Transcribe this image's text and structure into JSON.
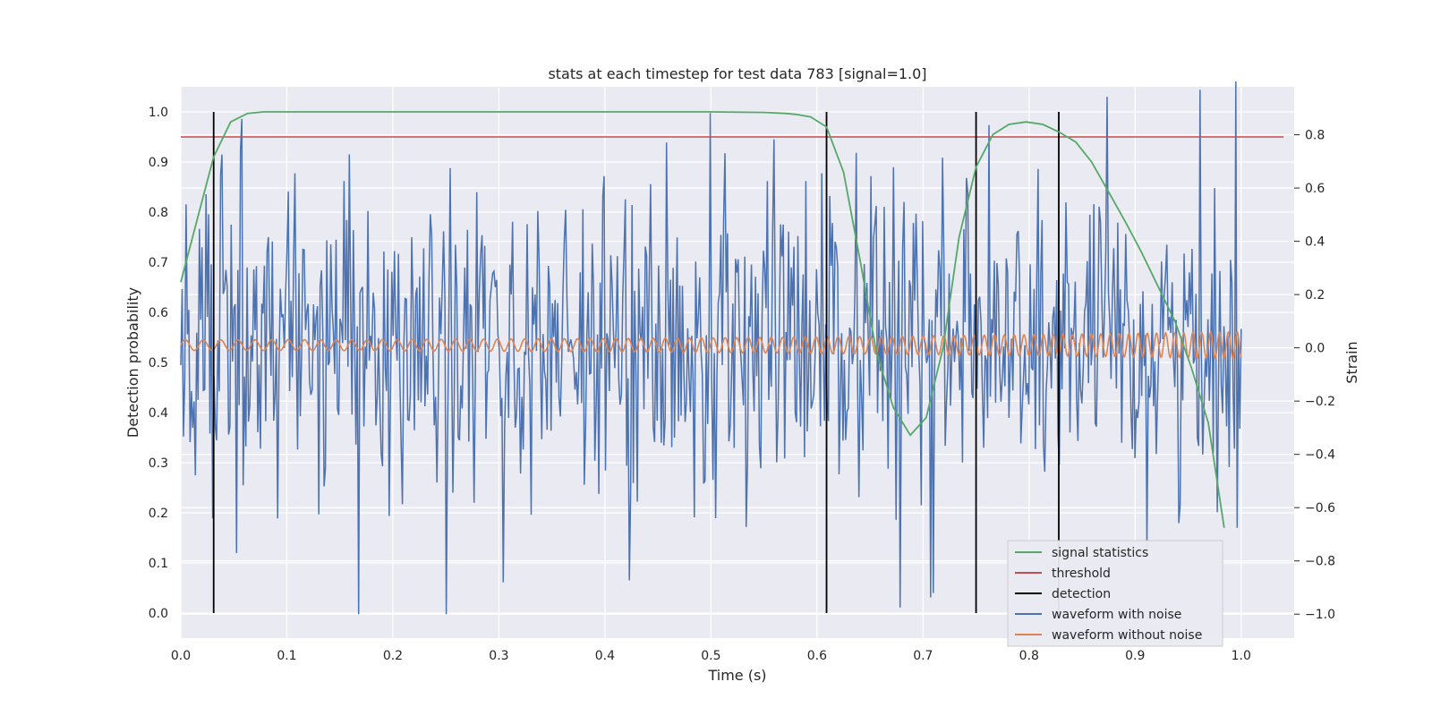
{
  "chart_data": {
    "type": "line",
    "title": "stats at each timestep for test data 783 [signal=1.0]",
    "xlabel": "Time (s)",
    "ylabel_left": "Detection probability",
    "ylabel_right": "Strain",
    "xlim": [
      0.0,
      1.05
    ],
    "ylim_left": [
      -0.05,
      1.05
    ],
    "ylim_right": [
      -1.09,
      0.98
    ],
    "x_ticks": [
      0.0,
      0.1,
      0.2,
      0.3,
      0.4,
      0.5,
      0.6,
      0.7,
      0.8,
      0.9,
      1.0
    ],
    "x_tick_labels": [
      "0.0",
      "0.1",
      "0.2",
      "0.3",
      "0.4",
      "0.5",
      "0.6",
      "0.7",
      "0.8",
      "0.9",
      "1.0"
    ],
    "y_left_ticks": [
      0.0,
      0.1,
      0.2,
      0.3,
      0.4,
      0.5,
      0.6,
      0.7,
      0.8,
      0.9,
      1.0
    ],
    "y_left_tick_labels": [
      "0.0",
      "0.1",
      "0.2",
      "0.3",
      "0.4",
      "0.5",
      "0.6",
      "0.7",
      "0.8",
      "0.9",
      "1.0"
    ],
    "y_right_ticks": [
      -1.0,
      -0.8,
      -0.6,
      -0.4,
      -0.2,
      0.0,
      0.2,
      0.4,
      0.6,
      0.8
    ],
    "y_right_tick_labels": [
      "−1.0",
      "−0.8",
      "−0.6",
      "−0.4",
      "−0.2",
      "0.0",
      "0.2",
      "0.4",
      "0.6",
      "0.8"
    ],
    "grid": true,
    "legend_position": "lower-right",
    "series": [
      {
        "name": "signal statistics",
        "axis": "left",
        "color": "#55a868",
        "x": [
          0.0,
          0.016,
          0.031,
          0.047,
          0.063,
          0.078,
          0.094,
          0.2,
          0.3,
          0.4,
          0.5,
          0.55,
          0.57,
          0.58,
          0.594,
          0.609,
          0.625,
          0.641,
          0.656,
          0.672,
          0.688,
          0.703,
          0.719,
          0.734,
          0.75,
          0.766,
          0.781,
          0.797,
          0.813,
          0.828,
          0.844,
          0.859,
          0.875,
          0.891,
          0.906,
          0.922,
          0.938,
          0.953,
          0.969,
          0.984
        ],
        "y": [
          0.66,
          0.79,
          0.91,
          0.98,
          0.997,
          1.0,
          1.0,
          1.0,
          1.0,
          1.0,
          1.0,
          0.999,
          0.997,
          0.995,
          0.99,
          0.97,
          0.88,
          0.7,
          0.52,
          0.41,
          0.355,
          0.39,
          0.53,
          0.75,
          0.89,
          0.955,
          0.975,
          0.98,
          0.975,
          0.96,
          0.94,
          0.9,
          0.84,
          0.78,
          0.72,
          0.65,
          0.58,
          0.49,
          0.38,
          0.17
        ]
      },
      {
        "name": "threshold",
        "axis": "left",
        "color": "#c44e52",
        "x": [
          0.0,
          1.04
        ],
        "y": [
          0.95,
          0.95
        ]
      },
      {
        "name": "detection",
        "axis": "left",
        "color": "#000000",
        "x": [
          0.031,
          0.609,
          0.75,
          0.828
        ],
        "y_range": [
          0.0,
          1.0
        ]
      },
      {
        "name": "waveform with noise",
        "axis": "right",
        "color": "#4c72b0",
        "x_range": [
          0.0,
          1.0
        ],
        "points": 800,
        "value_range": [
          -1.0,
          1.0
        ]
      },
      {
        "name": "waveform without noise",
        "axis": "right",
        "color": "#dd8452",
        "x_range": [
          0.0,
          1.0
        ],
        "amplitude_range": [
          0.02,
          0.05
        ],
        "cycles": 78
      }
    ]
  }
}
